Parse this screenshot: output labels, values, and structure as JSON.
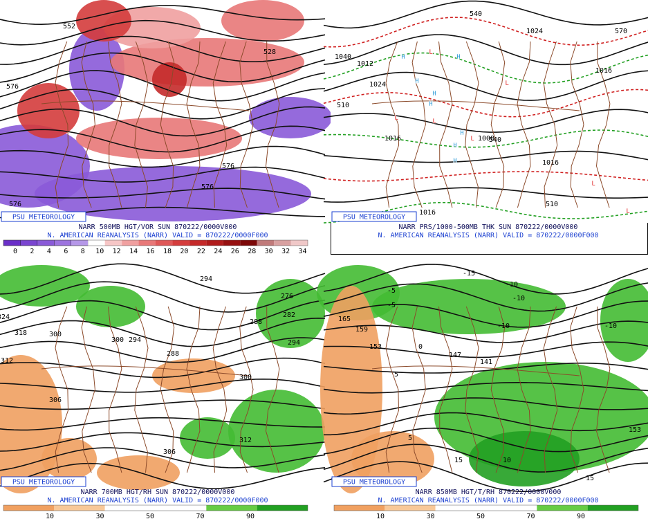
{
  "panels": [
    {
      "badge": "PSU METEOROLOGY",
      "caption": "NARR 500MB HGT/VOR SUN 870222/0000V000",
      "subcaption": "N. AMERICAN REANALYSIS (NARR) VALID = 870222/0000F000",
      "legend": {
        "labels": [
          0,
          2,
          4,
          6,
          8,
          10,
          12,
          14,
          16,
          18,
          20,
          22,
          24,
          26,
          28,
          30,
          32,
          34
        ],
        "colors": [
          "#6a2fc8",
          "#7a45d0",
          "#8a5ad8",
          "#9d74df",
          "#b597e8",
          "#ffffff",
          "#f6c6c6",
          "#f0a0a0",
          "#e87878",
          "#df5858",
          "#d43c3c",
          "#c42a2a",
          "#b01c1c",
          "#961010",
          "#7c0808",
          "#c07a7a",
          "#d8a0a0",
          "#f0c8c8"
        ]
      },
      "map_labels": [
        "552",
        "576",
        "528",
        "576",
        "576",
        "576"
      ]
    },
    {
      "badge": "PSU METEOROLOGY",
      "caption": "NARR PRS/1000-500MB THK SUN 870222/0000V000",
      "subcaption": "N. AMERICAN REANALYSIS (NARR) VALID = 870222/0000F000",
      "map_labels": [
        "1040",
        "1012",
        "1024",
        "1024",
        "1016",
        "1016",
        "1016",
        "1008",
        "510",
        "540",
        "540",
        "510",
        "570",
        "1016",
        "H",
        "H",
        "H",
        "H",
        "H",
        "H",
        "H",
        "H",
        "L",
        "L",
        "L",
        "L",
        "L",
        "L",
        "L"
      ]
    },
    {
      "badge": "PSU METEOROLOGY",
      "caption": "NARR 700MB HGT/RH SUN 870222/0000V000",
      "subcaption": "N. AMERICAN REANALYSIS (NARR) VALID = 870222/0000F000",
      "legend": {
        "labels": [
          10,
          30,
          50,
          70,
          90
        ],
        "colors": [
          "#f0a060",
          "#f8c898",
          "#ffffff",
          "#ffffff",
          "#66cc44",
          "#22a022"
        ]
      },
      "map_labels": [
        "294",
        "324",
        "318",
        "312",
        "306",
        "300",
        "300",
        "294",
        "288",
        "288",
        "282",
        "276",
        "294",
        "300",
        "312",
        "306"
      ]
    },
    {
      "badge": "PSU METEOROLOGY",
      "caption": "NARR 850MB HGT/T/RH 870222/0000V000",
      "subcaption": "N. AMERICAN REANALYSIS (NARR) VALID = 870222/0000F000",
      "legend": {
        "labels": [
          10,
          30,
          50,
          70,
          90
        ],
        "colors": [
          "#f0a060",
          "#f8c898",
          "#ffffff",
          "#ffffff",
          "#66cc44",
          "#22a022"
        ]
      },
      "map_labels": [
        "-5",
        "-5",
        "-10",
        "-10",
        "-10",
        "-15",
        "-10",
        "165",
        "159",
        "153",
        "147",
        "141",
        "5",
        "5",
        "15",
        "15",
        "10",
        "153",
        "0"
      ]
    }
  ]
}
